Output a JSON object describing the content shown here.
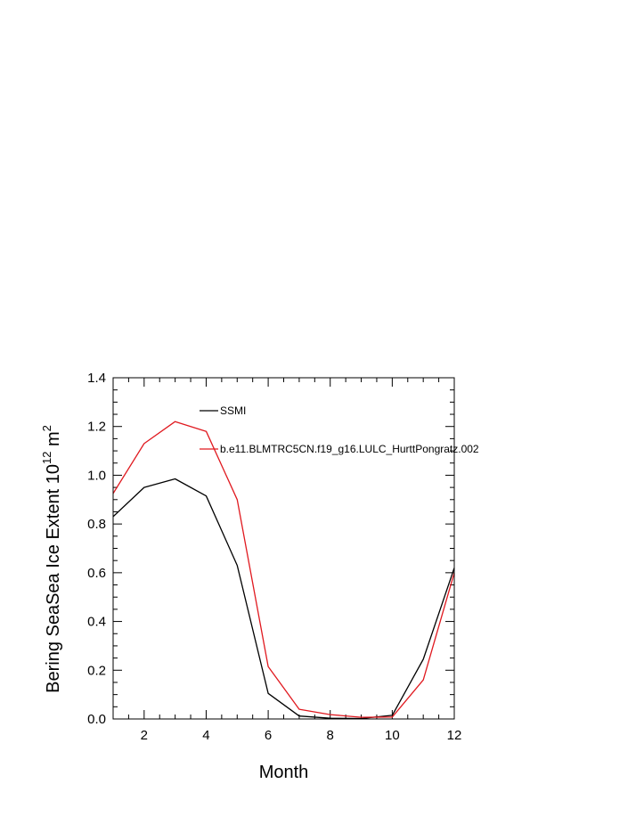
{
  "chart_data": {
    "type": "line",
    "xlabel": "Month",
    "ylabel_prefix": "Bering SeaSea Ice Extent 10",
    "ylabel_exponent_1": "12",
    "ylabel_unit": " m",
    "ylabel_exponent_2": "2",
    "xlim": [
      1,
      12
    ],
    "ylim": [
      0.0,
      1.4
    ],
    "x_ticks": [
      2,
      4,
      6,
      8,
      10,
      12
    ],
    "y_ticks": [
      0.0,
      0.2,
      0.4,
      0.6,
      0.8,
      1.0,
      1.2,
      1.4
    ],
    "y_tick_labels": [
      "0.0",
      "0.2",
      "0.4",
      "0.6",
      "0.8",
      "1.0",
      "1.2",
      "1.4"
    ],
    "x": [
      1,
      2,
      3,
      4,
      5,
      6,
      7,
      8,
      9,
      10,
      11,
      12
    ],
    "legend_position": "top-inside",
    "series": [
      {
        "name": "SSMI",
        "color": "#000000",
        "values": [
          0.83,
          0.95,
          0.985,
          0.915,
          0.63,
          0.105,
          0.012,
          0.003,
          0.002,
          0.015,
          0.245,
          0.62
        ]
      },
      {
        "name": "b.e11.BLMTRC5CN.f19_g16.LULC_HurttPongratz.002",
        "color": "#e0191f",
        "values": [
          0.925,
          1.13,
          1.22,
          1.18,
          0.9,
          0.215,
          0.04,
          0.018,
          0.007,
          0.008,
          0.16,
          0.6
        ]
      }
    ]
  }
}
